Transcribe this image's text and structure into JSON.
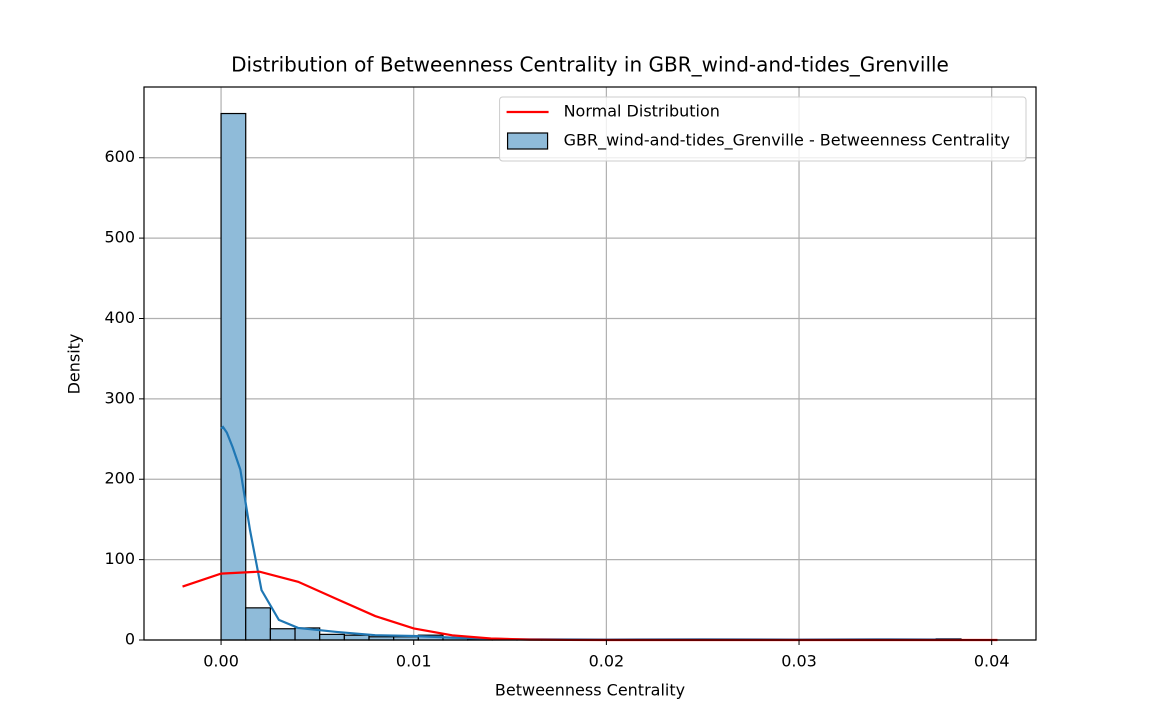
{
  "chart_data": {
    "type": "histogram",
    "title": "Distribution of Betweenness Centrality in GBR_wind-and-tides_Grenville",
    "x_label": "Betweenness Centrality",
    "y_label": "Density",
    "bins": [
      0,
      0.00128,
      0.00256,
      0.00384,
      0.00512,
      0.0064,
      0.00768,
      0.00896,
      0.01024,
      0.01152,
      0.0128,
      0.01408,
      0.01536,
      0.01664,
      0.01792,
      0.0192,
      0.02048,
      0.02176,
      0.02304,
      0.02432,
      0.0256,
      0.02688,
      0.02816,
      0.02944,
      0.03072,
      0.032,
      0.03328,
      0.03456,
      0.03584,
      0.03712,
      0.0384
    ],
    "series": [
      {
        "name": "GBR_wind-and-tides_Grenville - Betweenness Centrality",
        "color": "#8fbbd9",
        "values": [
          655,
          40,
          14,
          15,
          7,
          6,
          4,
          4,
          6,
          3,
          1,
          1,
          1,
          0.5,
          0,
          0,
          0,
          1,
          0.5,
          0.5,
          0.5,
          0,
          0,
          0,
          0,
          0,
          1,
          0.5,
          0,
          1.5
        ]
      }
    ],
    "lines": [
      {
        "color": "#1f77b4",
        "x": [
          0,
          0.0001,
          0.0003,
          0.0006,
          0.001,
          0.0015,
          0.0021,
          0.003,
          0.004,
          0.006,
          0.008,
          0.01,
          0.012,
          0.015,
          0.02,
          0.025,
          0.03,
          0.034,
          0.0384
        ],
        "values": [
          263,
          265,
          258,
          240,
          212,
          137,
          62,
          25,
          15,
          10,
          6,
          5,
          3,
          1,
          0.5,
          0.8,
          0.5,
          0.8,
          0.5
        ]
      },
      {
        "name": "Normal Distribution",
        "color": "#ff0000",
        "x": [
          -0.002,
          0,
          0.002,
          0.004,
          0.006,
          0.008,
          0.01,
          0.012,
          0.014,
          0.016,
          0.018,
          0.02,
          0.025,
          0.03,
          0.035,
          0.0403
        ],
        "values": [
          66.5,
          82.6,
          85,
          72.4,
          51,
          29.8,
          14.4,
          5.8,
          1.9,
          0.5,
          0.1,
          0,
          0,
          0,
          0,
          0
        ]
      }
    ],
    "xlim": [
      -0.004,
      0.0423
    ],
    "ylim": [
      0,
      688
    ],
    "xticks": [
      {
        "value": 0,
        "label": "0.00"
      },
      0.01,
      0.02,
      0.03,
      0.04
    ],
    "yticks": [
      0,
      100,
      200,
      300,
      400,
      500,
      600
    ],
    "grid": true,
    "legend": "upper right"
  }
}
